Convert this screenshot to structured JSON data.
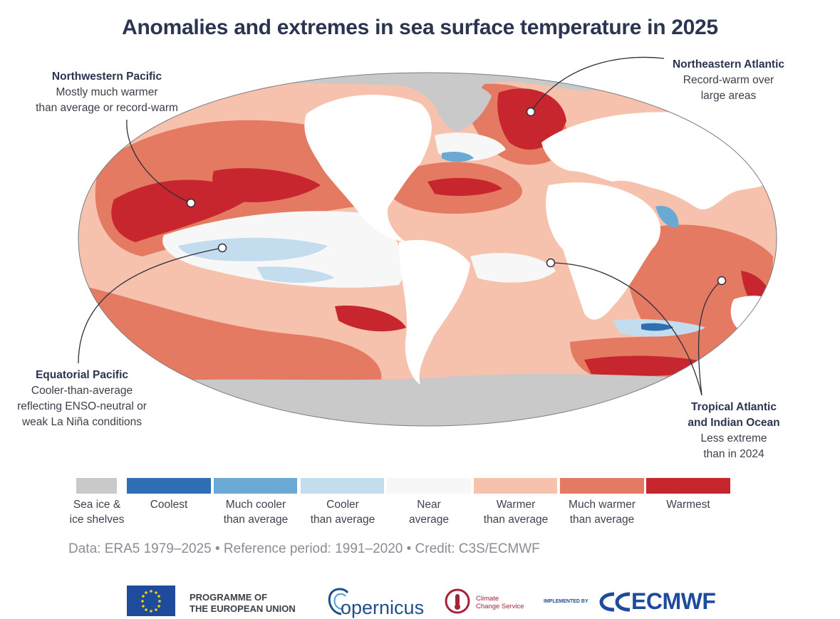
{
  "title": "Anomalies and extremes in sea surface temperature in 2025",
  "callouts": {
    "nw_pacific": {
      "head": "Northwestern Pacific",
      "body1": "Mostly much warmer",
      "body2": "than average or record-warm"
    },
    "ne_atlantic": {
      "head": "Northeastern Atlantic",
      "body1": "Record-warm over",
      "body2": "large areas"
    },
    "eq_pacific": {
      "head": "Equatorial Pacific",
      "body1": "Cooler-than-average",
      "body2": "reflecting ENSO-neutral or",
      "body3": "weak La Niña conditions"
    },
    "trop_atl": {
      "head1": "Tropical Atlantic",
      "head2": "and Indian Ocean",
      "body1": "Less extreme",
      "body2": "than in 2024"
    }
  },
  "legend": [
    {
      "line1": "Sea ice &",
      "line2": "ice shelves",
      "color": "#c9c9c9"
    },
    {
      "line1": "Coolest",
      "line2": "",
      "color": "#2e6fb3"
    },
    {
      "line1": "Much cooler",
      "line2": "than average",
      "color": "#6aa9d3"
    },
    {
      "line1": "Cooler",
      "line2": "than average",
      "color": "#c3dcee"
    },
    {
      "line1": "Near",
      "line2": "average",
      "color": "#f7f7f7"
    },
    {
      "line1": "Warmer",
      "line2": "than average",
      "color": "#f6c2ae"
    },
    {
      "line1": "Much warmer",
      "line2": "than average",
      "color": "#e57a63"
    },
    {
      "line1": "Warmest",
      "line2": "",
      "color": "#c7262e"
    }
  ],
  "credit": "Data: ERA5 1979–2025 • Reference period: 1991–2020 • Credit: C3S/ECMWF",
  "logos": {
    "eu_line1": "PROGRAMME OF",
    "eu_line2": "THE EUROPEAN UNION",
    "copernicus": "opernicus",
    "c3s_line1": "Climate",
    "c3s_line2": "Change Service",
    "implemented_by": "IMPLEMENTED BY",
    "ecmwf": "ECMWF"
  },
  "colors": {
    "land": "#ffffff",
    "ice": "#c9c9c9",
    "warmest": "#c7262e",
    "much_warmer": "#e57a63",
    "warmer": "#f6c2ae",
    "near": "#f7f7f7",
    "cooler": "#c3dcee",
    "much_cooler": "#6aa9d3",
    "coolest": "#2e6fb3"
  }
}
